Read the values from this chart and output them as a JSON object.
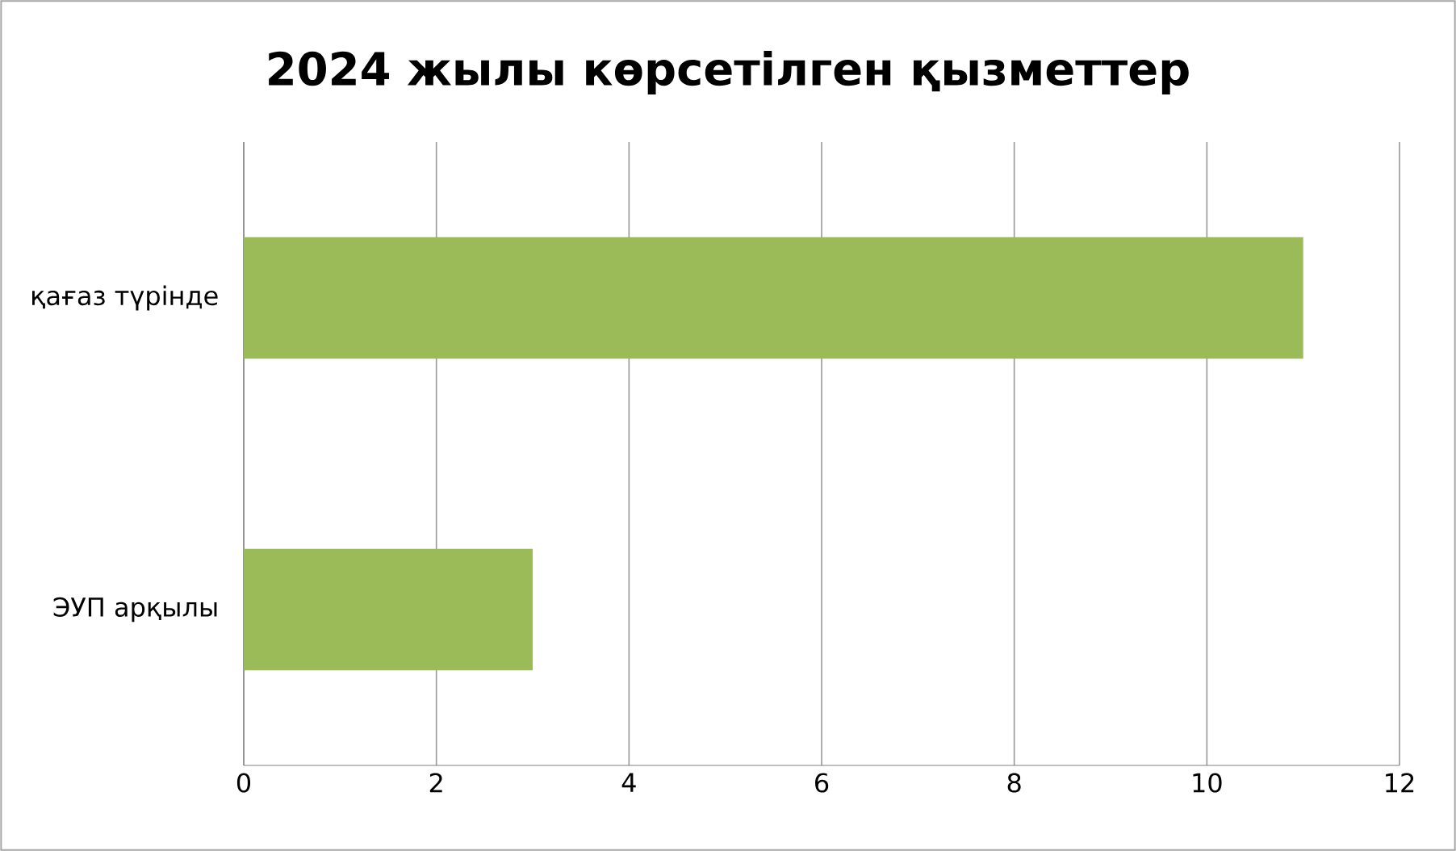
{
  "chart_data": {
    "type": "bar",
    "orientation": "horizontal",
    "title": "2024 жылы көрсетілген қызметтер",
    "categories": [
      "қағаз түрінде",
      "ЭУП арқылы"
    ],
    "values": [
      11,
      3
    ],
    "color": "#9bbb59",
    "xlim": [
      0,
      12
    ],
    "xticks": [
      0,
      2,
      4,
      6,
      8,
      10,
      12
    ],
    "grid": "x"
  }
}
